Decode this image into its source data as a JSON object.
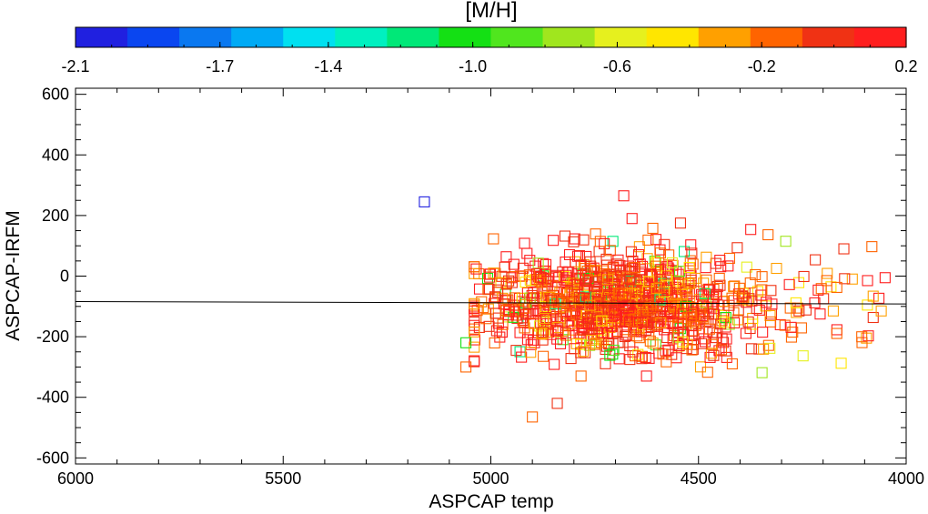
{
  "chart_data": {
    "type": "scatter",
    "xlabel": "ASPCAP temp",
    "ylabel": "ASPCAP-IRFM",
    "xlim": [
      6000,
      4000
    ],
    "ylim": [
      -620,
      620
    ],
    "xticks": [
      6000,
      5500,
      5000,
      4500,
      4000
    ],
    "yticks": [
      -600,
      -400,
      -200,
      0,
      200,
      400,
      600
    ],
    "xtick_labels": [
      "6000",
      "5500",
      "5000",
      "4500",
      "4000"
    ],
    "ytick_labels": [
      "-600",
      "-400",
      "-200",
      "0",
      "200",
      "400",
      "600"
    ],
    "fit_line": {
      "x": [
        6000,
        4000
      ],
      "y": [
        -84,
        -92
      ]
    },
    "colorbar": {
      "title": "[M/H]",
      "range": [
        -2.1,
        0.2
      ],
      "tick_labels": [
        "-2.1",
        "-1.7",
        "-1.4",
        "-1.0",
        "-0.6",
        "-0.2",
        "0.2"
      ],
      "colors": [
        "#2020e0",
        "#0a46f0",
        "#0a78f0",
        "#00aaf5",
        "#00e0f0",
        "#00f0c0",
        "#00e878",
        "#14e014",
        "#50e61e",
        "#a0e61e",
        "#e6f01e",
        "#ffe600",
        "#ffa000",
        "#ff6400",
        "#f03214",
        "#ff1e1e"
      ]
    },
    "notable_points": [
      {
        "x": 5160,
        "y": 245,
        "mh": -2.0
      },
      {
        "x": 4900,
        "y": -465,
        "mh": -0.2
      },
      {
        "x": 4840,
        "y": -420,
        "mh": 0.05
      },
      {
        "x": 4680,
        "y": 265,
        "mh": 0.1
      },
      {
        "x": 4150,
        "y": 90,
        "mh": 0.05
      },
      {
        "x": 4060,
        "y": -115,
        "mh": -0.25
      },
      {
        "x": 5060,
        "y": -220,
        "mh": -1.0
      },
      {
        "x": 5060,
        "y": -300,
        "mh": -0.2
      },
      {
        "x": 4290,
        "y": 115,
        "mh": -0.7
      },
      {
        "x": 4660,
        "y": 190,
        "mh": 0.1
      }
    ],
    "cloud": {
      "count": 1100,
      "x_range": [
        5040,
        4050
      ],
      "core_x_mean": 4700,
      "core_x_sd": 160,
      "y_mean": -90,
      "y_sd": 85,
      "mh_mean": -0.05,
      "mh_sd": 0.2,
      "seed": 12345
    }
  }
}
